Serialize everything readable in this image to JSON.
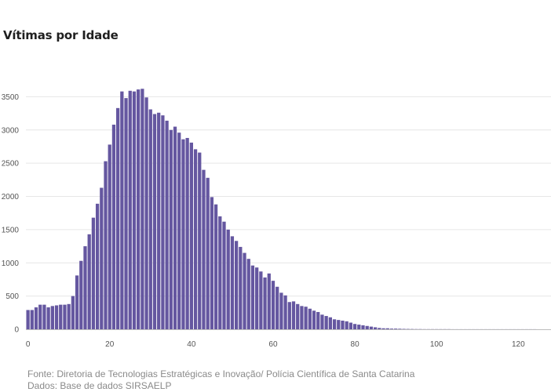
{
  "title": "Vítimas por Idade",
  "footer": {
    "source": "Fonte: Diretoria de Tecnologias Estratégicas e Inovação/ Polícia Científica de Santa Catarina",
    "data": "Dados: Base de dados SIRSAELP"
  },
  "colors": {
    "bar": "#6557a0",
    "grid": "#e6e6e6",
    "axis": "#bdbdbd"
  },
  "chart_data": {
    "type": "bar",
    "title": "Vítimas por Idade",
    "xlabel": "",
    "ylabel": "",
    "grid": true,
    "xlim": [
      -0.5,
      128
    ],
    "ylim": [
      0,
      3800
    ],
    "x_ticks": [
      0,
      20,
      40,
      60,
      80,
      100,
      120
    ],
    "y_ticks": [
      0,
      500,
      1000,
      1500,
      2000,
      2500,
      3000,
      3500
    ],
    "x": [
      0,
      1,
      2,
      3,
      4,
      5,
      6,
      7,
      8,
      9,
      10,
      11,
      12,
      13,
      14,
      15,
      16,
      17,
      18,
      19,
      20,
      21,
      22,
      23,
      24,
      25,
      26,
      27,
      28,
      29,
      30,
      31,
      32,
      33,
      34,
      35,
      36,
      37,
      38,
      39,
      40,
      41,
      42,
      43,
      44,
      45,
      46,
      47,
      48,
      49,
      50,
      51,
      52,
      53,
      54,
      55,
      56,
      57,
      58,
      59,
      60,
      61,
      62,
      63,
      64,
      65,
      66,
      67,
      68,
      69,
      70,
      71,
      72,
      73,
      74,
      75,
      76,
      77,
      78,
      79,
      80,
      81,
      82,
      83,
      84,
      85,
      86,
      87,
      88,
      89,
      90,
      91,
      92,
      93,
      94,
      95,
      96,
      97,
      98,
      99,
      100,
      101,
      102,
      103,
      104,
      105,
      106,
      107,
      108,
      109,
      110,
      111,
      112,
      113,
      114,
      115,
      116,
      117,
      118,
      119,
      120,
      121,
      122,
      123,
      124
    ],
    "values": [
      290,
      290,
      330,
      370,
      370,
      330,
      350,
      360,
      370,
      370,
      380,
      500,
      810,
      1030,
      1250,
      1430,
      1680,
      1890,
      2130,
      2530,
      2780,
      3080,
      3330,
      3580,
      3480,
      3590,
      3580,
      3610,
      3620,
      3490,
      3310,
      3240,
      3260,
      3220,
      3140,
      3000,
      3050,
      2960,
      2860,
      2880,
      2810,
      2710,
      2660,
      2400,
      2280,
      1990,
      1880,
      1700,
      1620,
      1500,
      1400,
      1330,
      1240,
      1150,
      1060,
      960,
      930,
      870,
      780,
      840,
      730,
      640,
      550,
      510,
      410,
      420,
      380,
      350,
      340,
      310,
      280,
      260,
      220,
      200,
      180,
      150,
      140,
      130,
      120,
      100,
      80,
      70,
      60,
      50,
      40,
      30,
      20,
      15,
      15,
      10,
      10,
      8,
      6,
      5,
      4,
      3,
      3,
      2,
      2,
      2,
      2,
      2,
      2,
      2,
      1,
      1,
      1,
      1,
      1,
      1,
      1,
      1,
      1,
      1,
      1,
      1,
      1,
      1,
      1,
      1,
      1,
      1,
      1,
      1,
      1
    ]
  }
}
